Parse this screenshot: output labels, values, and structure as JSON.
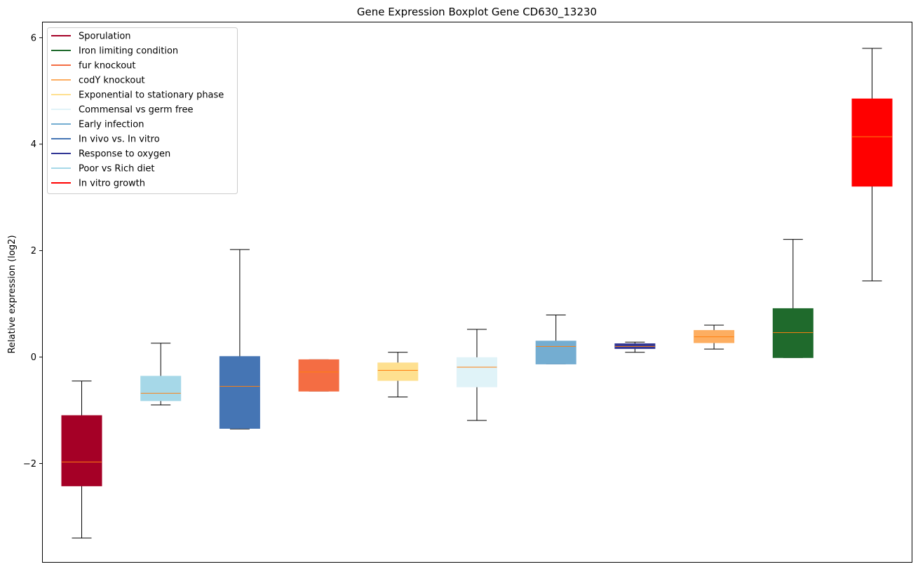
{
  "chart_data": {
    "type": "boxplot",
    "title": "Gene Expression Boxplot Gene CD630_13230",
    "xlabel": "",
    "ylabel": "Relative expression (log2)",
    "ylim": [
      -3.85,
      6.3
    ],
    "yticks": [
      {
        "value": -2,
        "label": "−2"
      },
      {
        "value": 0,
        "label": "0"
      },
      {
        "value": 2,
        "label": "2"
      },
      {
        "value": 4,
        "label": "4"
      },
      {
        "value": 6,
        "label": "6"
      }
    ],
    "median_color": "#ff7f0e",
    "legend_position": "upper-left",
    "boxes": [
      {
        "name": "Sporulation",
        "color": "#a50026",
        "whislo": -3.4,
        "q1": -2.42,
        "med": -1.97,
        "q3": -1.1,
        "whishi": -0.45
      },
      {
        "name": "Poor vs Rich diet",
        "color": "#a6d8e8",
        "whislo": -0.9,
        "q1": -0.82,
        "med": -0.68,
        "q3": -0.36,
        "whishi": 0.26
      },
      {
        "name": "In vivo vs. In vitro",
        "color": "#4575b4",
        "whislo": -1.35,
        "q1": -1.34,
        "med": -0.55,
        "q3": 0.01,
        "whishi": 2.02
      },
      {
        "name": "fur knockout",
        "color": "#f46d43",
        "whislo": -0.64,
        "q1": -0.64,
        "med": -0.28,
        "q3": -0.05,
        "whishi": -0.05
      },
      {
        "name": "Exponential to stationary phase",
        "color": "#fee090",
        "whislo": -0.75,
        "q1": -0.44,
        "med": -0.25,
        "q3": -0.11,
        "whishi": 0.09
      },
      {
        "name": "Commensal vs germ free",
        "color": "#e0f3f8",
        "whislo": -1.19,
        "q1": -0.56,
        "med": -0.19,
        "q3": -0.01,
        "whishi": 0.52
      },
      {
        "name": "Early infection",
        "color": "#74add1",
        "whislo": -0.13,
        "q1": -0.13,
        "med": 0.2,
        "q3": 0.3,
        "whishi": 0.79
      },
      {
        "name": "Response to oxygen",
        "color": "#313695",
        "whislo": 0.09,
        "q1": 0.16,
        "med": 0.2,
        "q3": 0.25,
        "whishi": 0.28
      },
      {
        "name": "codY knockout",
        "color": "#fdae61",
        "whislo": 0.15,
        "q1": 0.27,
        "med": 0.38,
        "q3": 0.5,
        "whishi": 0.6
      },
      {
        "name": "Iron limiting condition",
        "color": "#1f6a2c",
        "whislo": -0.01,
        "q1": -0.01,
        "med": 0.46,
        "q3": 0.91,
        "whishi": 2.21
      },
      {
        "name": "In vitro growth",
        "color": "#ff0000",
        "whislo": 1.43,
        "q1": 3.21,
        "med": 4.14,
        "q3": 4.85,
        "whishi": 5.8
      }
    ],
    "legend": [
      {
        "label": "Sporulation",
        "color": "#a50026"
      },
      {
        "label": "Iron limiting condition",
        "color": "#1f6a2c"
      },
      {
        "label": "fur knockout",
        "color": "#f46d43"
      },
      {
        "label": "codY knockout",
        "color": "#fdae61"
      },
      {
        "label": "Exponential to stationary phase",
        "color": "#fee090"
      },
      {
        "label": "Commensal vs germ free",
        "color": "#e0f3f8"
      },
      {
        "label": "Early infection",
        "color": "#74add1"
      },
      {
        "label": "In vivo vs. In vitro",
        "color": "#4575b4"
      },
      {
        "label": "Response to oxygen",
        "color": "#313695"
      },
      {
        "label": "Poor vs Rich diet",
        "color": "#a6d8e8"
      },
      {
        "label": "In vitro growth",
        "color": "#ff0000"
      }
    ]
  }
}
